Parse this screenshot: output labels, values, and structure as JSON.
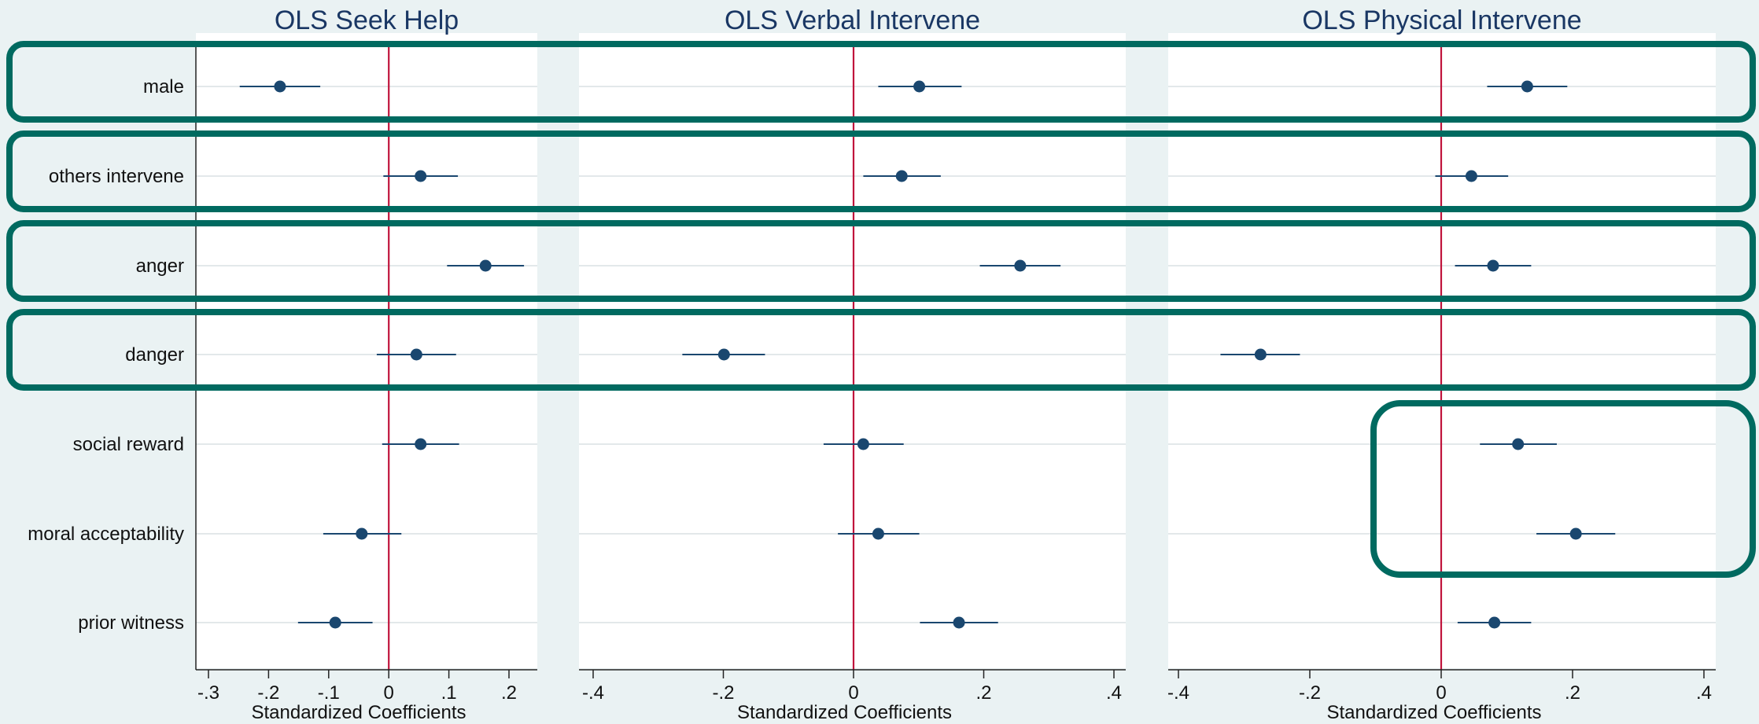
{
  "chart_data": {
    "type": "scatter",
    "variant": "coefficient-plot",
    "categories": [
      "male",
      "others intervene",
      "anger",
      "danger",
      "social reward",
      "moral acceptability",
      "prior witness"
    ],
    "reference_line": 0,
    "colors": {
      "background": "#eaf2f3",
      "plot_area": "#ffffff",
      "marker": "#1a476f",
      "reference_line": "#c0143c",
      "highlight": "#006a60",
      "title": "#1a3764",
      "grid": "#e3e8ea"
    },
    "panels": [
      {
        "title": "OLS Seek Help",
        "xlabel": "Standardized Coefficients",
        "xlim": [
          -0.31,
          0.245
        ],
        "ticks": [
          -0.3,
          -0.2,
          -0.1,
          0,
          0.1,
          0.2
        ],
        "tick_labels": [
          "-.3",
          "-.2",
          "-.1",
          "0",
          ".1",
          ".2"
        ],
        "points": [
          {
            "label": "male",
            "estimate": -0.181,
            "ci": [
              -0.248,
              -0.114
            ]
          },
          {
            "label": "others intervene",
            "estimate": 0.053,
            "ci": [
              -0.009,
              0.115
            ]
          },
          {
            "label": "anger",
            "estimate": 0.161,
            "ci": [
              0.097,
              0.225
            ]
          },
          {
            "label": "danger",
            "estimate": 0.046,
            "ci": [
              -0.02,
              0.112
            ]
          },
          {
            "label": "social reward",
            "estimate": 0.053,
            "ci": [
              -0.011,
              0.117
            ]
          },
          {
            "label": "moral acceptability",
            "estimate": -0.045,
            "ci": [
              -0.109,
              0.021
            ]
          },
          {
            "label": "prior witness",
            "estimate": -0.089,
            "ci": [
              -0.151,
              -0.027
            ]
          }
        ]
      },
      {
        "title": "OLS Verbal Intervene",
        "xlabel": "Standardized Coefficients",
        "xlim": [
          -0.42,
          0.42
        ],
        "ticks": [
          -0.4,
          -0.2,
          0,
          0.2,
          0.4
        ],
        "tick_labels": [
          "-.4",
          "-.2",
          "0",
          ".2",
          ".4"
        ],
        "points": [
          {
            "label": "male",
            "estimate": 0.101,
            "ci": [
              0.038,
              0.166
            ]
          },
          {
            "label": "others intervene",
            "estimate": 0.074,
            "ci": [
              0.015,
              0.134
            ]
          },
          {
            "label": "anger",
            "estimate": 0.256,
            "ci": [
              0.194,
              0.318
            ]
          },
          {
            "label": "danger",
            "estimate": -0.199,
            "ci": [
              -0.263,
              -0.136
            ]
          },
          {
            "label": "social reward",
            "estimate": 0.015,
            "ci": [
              -0.046,
              0.077
            ]
          },
          {
            "label": "moral acceptability",
            "estimate": 0.038,
            "ci": [
              -0.024,
              0.101
            ]
          },
          {
            "label": "prior witness",
            "estimate": 0.162,
            "ci": [
              0.102,
              0.222
            ]
          }
        ]
      },
      {
        "title": "OLS Physical Intervene",
        "xlabel": "Standardized Coefficients",
        "xlim": [
          -0.415,
          0.42
        ],
        "ticks": [
          -0.4,
          -0.2,
          0,
          0.2,
          0.4
        ],
        "tick_labels": [
          "-.4",
          "-.2",
          "0",
          ".2",
          ".4"
        ],
        "points": [
          {
            "label": "male",
            "estimate": 0.131,
            "ci": [
              0.07,
              0.192
            ]
          },
          {
            "label": "others intervene",
            "estimate": 0.046,
            "ci": [
              -0.009,
              0.102
            ]
          },
          {
            "label": "anger",
            "estimate": 0.079,
            "ci": [
              0.021,
              0.137
            ]
          },
          {
            "label": "danger",
            "estimate": -0.275,
            "ci": [
              -0.336,
              -0.215
            ]
          },
          {
            "label": "social reward",
            "estimate": 0.117,
            "ci": [
              0.059,
              0.176
            ]
          },
          {
            "label": "moral acceptability",
            "estimate": 0.205,
            "ci": [
              0.145,
              0.265
            ]
          },
          {
            "label": "prior witness",
            "estimate": 0.081,
            "ci": [
              0.025,
              0.137
            ]
          }
        ]
      }
    ],
    "highlights": [
      {
        "scope": "all-panels",
        "categories": [
          "male"
        ]
      },
      {
        "scope": "all-panels",
        "categories": [
          "others intervene"
        ]
      },
      {
        "scope": "all-panels",
        "categories": [
          "anger"
        ]
      },
      {
        "scope": "all-panels",
        "categories": [
          "danger"
        ]
      },
      {
        "scope": "OLS Physical Intervene",
        "categories": [
          "social reward",
          "moral acceptability"
        ]
      }
    ]
  }
}
